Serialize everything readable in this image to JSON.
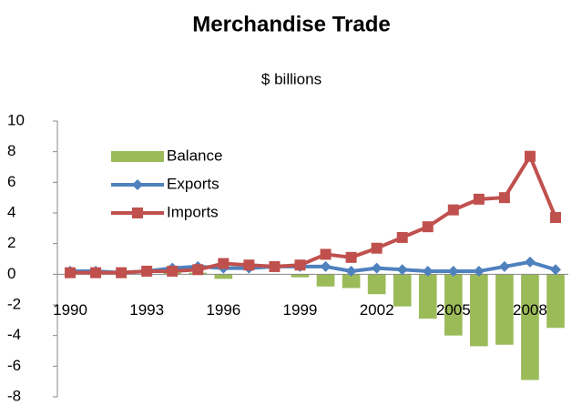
{
  "chart_data": {
    "type": "bar-line",
    "title": "Merchandise Trade",
    "subtitle": "$ billions",
    "categories": [
      "1990",
      null,
      null,
      "1993",
      null,
      null,
      "1996",
      null,
      null,
      "1999",
      null,
      null,
      "2002",
      null,
      null,
      "2005",
      null,
      null,
      "2008",
      null
    ],
    "series": [
      {
        "name": "Balance",
        "type": "bar",
        "color": "#9bbb59",
        "values": [
          0,
          0,
          0,
          0,
          0.1,
          0.1,
          -0.3,
          0,
          0,
          -0.2,
          -0.8,
          -0.9,
          -1.3,
          -2.1,
          -2.9,
          -4.0,
          -4.7,
          -4.6,
          -6.9,
          -3.5
        ]
      },
      {
        "name": "Exports",
        "type": "line",
        "marker": "diamond",
        "color": "#4f81bd",
        "values": [
          0.2,
          0.2,
          0.1,
          0.2,
          0.4,
          0.5,
          0.4,
          0.4,
          0.5,
          0.5,
          0.5,
          0.2,
          0.4,
          0.3,
          0.2,
          0.2,
          0.2,
          0.5,
          0.8,
          0.3
        ]
      },
      {
        "name": "Imports",
        "type": "line",
        "marker": "square",
        "color": "#c0504d",
        "values": [
          0.1,
          0.1,
          0.1,
          0.2,
          0.2,
          0.3,
          0.7,
          0.6,
          0.5,
          0.6,
          1.3,
          1.1,
          1.7,
          2.4,
          3.1,
          4.2,
          4.9,
          5.0,
          7.7,
          3.7
        ]
      }
    ],
    "ylim": [
      -8,
      10
    ],
    "yticks": [
      -8,
      -6,
      -4,
      -2,
      0,
      2,
      4,
      6,
      8,
      10
    ],
    "grid": false,
    "legend": "top-left"
  }
}
